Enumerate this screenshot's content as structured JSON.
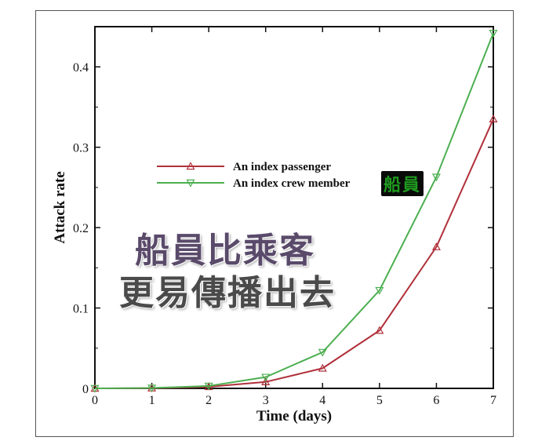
{
  "chart_data": {
    "type": "line",
    "xlabel": "Time (days)",
    "ylabel": "Attack rate",
    "xlim": [
      0,
      7
    ],
    "ylim": [
      0,
      0.45
    ],
    "xticks": [
      "0",
      "1",
      "2",
      "3",
      "4",
      "5",
      "6",
      "7"
    ],
    "yticks": [
      "0",
      "0.1",
      "0.2",
      "0.3",
      "0.4"
    ],
    "x": [
      0,
      1,
      2,
      3,
      4,
      5,
      6,
      7
    ],
    "series": [
      {
        "name": "An index passenger",
        "values": [
          0,
          0.0003,
          0.002,
          0.008,
          0.025,
          0.072,
          0.176,
          0.335
        ],
        "color": "#b0303a",
        "marker": "triangle-up"
      },
      {
        "name": "An index crew member",
        "values": [
          0,
          0.0005,
          0.003,
          0.014,
          0.045,
          0.122,
          0.263,
          0.442
        ],
        "color": "#4caf50",
        "marker": "triangle-down"
      }
    ],
    "grid": false,
    "legend_position": "upper-left"
  },
  "overlay": {
    "caption_line1": "船員比乘客",
    "caption_line2": "更易傳播出去",
    "badge": "船員"
  }
}
